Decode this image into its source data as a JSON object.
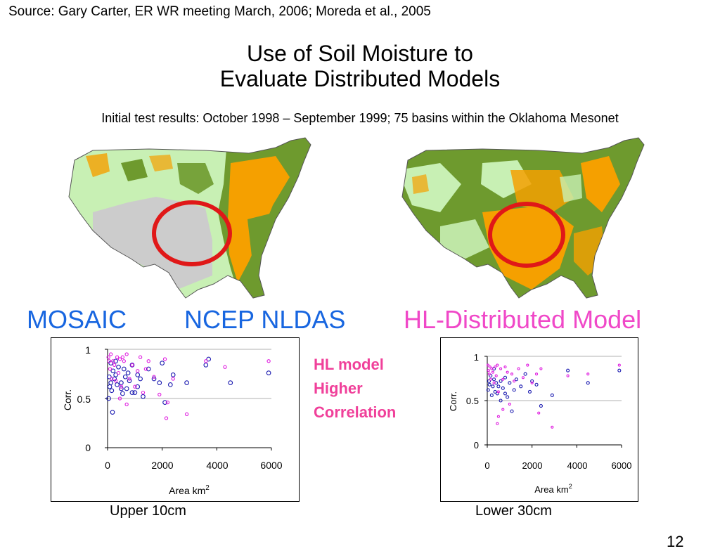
{
  "slide": {
    "source": "Source: Gary Carter, ER WR meeting March, 2006; Moreda et al., 2005",
    "title_line1": "Use of Soil Moisture to",
    "title_line2": "Evaluate Distributed Models",
    "subtitle": "Initial test results: October 1998 – September 1999; 75 basins within the Oklahoma Mesonet",
    "model_labels": [
      "MOSAIC",
      "NCEP NLDAS",
      "HL-Distributed Model"
    ],
    "callout": [
      "HL model",
      "Higher",
      "Correlation"
    ],
    "captions": [
      "Upper 10cm",
      "Lower 30cm"
    ],
    "page_number": "12"
  },
  "colors": {
    "blue_label": "#1866e0",
    "pink_label": "#f048c8",
    "callout": "#f0409a",
    "map_dry": "#f5a000",
    "map_moist": "#6e9a2e",
    "map_light": "#c8f0b4",
    "map_nodata": "#cccccc",
    "circle": "#e01818",
    "series_ncep": "#1a1ab0",
    "series_hl": "#e020e0"
  },
  "chart_data": [
    {
      "type": "scatter",
      "caption": "Upper 10cm",
      "xlabel": "Area km",
      "xlabel_sup": "2",
      "ylabel": "Corr.",
      "xlim": [
        0,
        6000
      ],
      "ylim": [
        0,
        1
      ],
      "xticks": [
        "0",
        "2000",
        "4000",
        "6000"
      ],
      "yticks": [
        "0",
        "0.5",
        "1"
      ],
      "grid": "horizontal",
      "series": [
        {
          "color": "#1a1ab0",
          "points": [
            [
              40,
              0.5
            ],
            [
              60,
              0.72
            ],
            [
              80,
              0.62
            ],
            [
              120,
              0.66
            ],
            [
              150,
              0.58
            ],
            [
              180,
              0.36
            ],
            [
              200,
              0.78
            ],
            [
              250,
              0.7
            ],
            [
              300,
              0.74
            ],
            [
              350,
              0.64
            ],
            [
              400,
              0.82
            ],
            [
              500,
              0.66
            ],
            [
              550,
              0.55
            ],
            [
              600,
              0.8
            ],
            [
              650,
              0.72
            ],
            [
              700,
              0.6
            ],
            [
              750,
              0.76
            ],
            [
              800,
              0.68
            ],
            [
              900,
              0.84
            ],
            [
              1000,
              0.56
            ],
            [
              1100,
              0.74
            ],
            [
              1200,
              0.7
            ],
            [
              1300,
              0.52
            ],
            [
              1500,
              0.8
            ],
            [
              1700,
              0.7
            ],
            [
              1900,
              0.66
            ],
            [
              2000,
              0.86
            ],
            [
              2100,
              0.46
            ],
            [
              2300,
              0.64
            ],
            [
              2400,
              0.74
            ],
            [
              2900,
              0.66
            ],
            [
              3600,
              0.84
            ],
            [
              3700,
              0.9
            ],
            [
              4500,
              0.66
            ],
            [
              5900,
              0.76
            ],
            [
              120,
              0.86
            ],
            [
              300,
              0.88
            ],
            [
              500,
              0.6
            ],
            [
              900,
              0.56
            ],
            [
              1100,
              0.62
            ]
          ]
        },
        {
          "color": "#e020e0",
          "points": [
            [
              30,
              0.92
            ],
            [
              60,
              0.88
            ],
            [
              90,
              0.8
            ],
            [
              120,
              0.95
            ],
            [
              150,
              0.7
            ],
            [
              200,
              0.88
            ],
            [
              250,
              0.84
            ],
            [
              300,
              0.68
            ],
            [
              350,
              0.92
            ],
            [
              400,
              0.76
            ],
            [
              450,
              0.9
            ],
            [
              500,
              0.62
            ],
            [
              600,
              0.88
            ],
            [
              700,
              0.95
            ],
            [
              800,
              0.7
            ],
            [
              900,
              0.84
            ],
            [
              1000,
              0.62
            ],
            [
              1100,
              0.78
            ],
            [
              1200,
              0.92
            ],
            [
              1300,
              0.56
            ],
            [
              1400,
              0.8
            ],
            [
              1500,
              0.88
            ],
            [
              1700,
              0.72
            ],
            [
              1900,
              0.54
            ],
            [
              2100,
              0.9
            ],
            [
              2200,
              0.46
            ],
            [
              2150,
              0.3
            ],
            [
              2400,
              0.7
            ],
            [
              2900,
              0.34
            ],
            [
              3600,
              0.88
            ],
            [
              4300,
              0.82
            ],
            [
              5900,
              0.88
            ],
            [
              700,
              0.44
            ],
            [
              450,
              0.5
            ],
            [
              550,
              0.92
            ]
          ]
        }
      ]
    },
    {
      "type": "scatter",
      "caption": "Lower 30cm",
      "xlabel": "Area km",
      "xlabel_sup": "2",
      "ylabel": "Corr.",
      "xlim": [
        0,
        6000
      ],
      "ylim": [
        0,
        1
      ],
      "xticks": [
        "0",
        "2000",
        "4000",
        "6000"
      ],
      "yticks": [
        "0",
        "0.5",
        "1"
      ],
      "grid": "horizontal",
      "series": [
        {
          "color": "#1a1ab0",
          "points": [
            [
              40,
              0.62
            ],
            [
              80,
              0.72
            ],
            [
              100,
              0.68
            ],
            [
              150,
              0.78
            ],
            [
              200,
              0.56
            ],
            [
              250,
              0.66
            ],
            [
              300,
              0.74
            ],
            [
              350,
              0.6
            ],
            [
              400,
              0.7
            ],
            [
              450,
              0.58
            ],
            [
              500,
              0.66
            ],
            [
              600,
              0.72
            ],
            [
              700,
              0.64
            ],
            [
              800,
              0.76
            ],
            [
              900,
              0.54
            ],
            [
              1000,
              0.7
            ],
            [
              1100,
              0.38
            ],
            [
              1200,
              0.62
            ],
            [
              1300,
              0.74
            ],
            [
              1500,
              0.66
            ],
            [
              1700,
              0.8
            ],
            [
              1900,
              0.6
            ],
            [
              2000,
              0.72
            ],
            [
              2200,
              0.68
            ],
            [
              2400,
              0.44
            ],
            [
              2900,
              0.56
            ],
            [
              3600,
              0.84
            ],
            [
              4500,
              0.7
            ],
            [
              5900,
              0.84
            ],
            [
              600,
              0.5
            ],
            [
              800,
              0.58
            ],
            [
              300,
              0.86
            ]
          ]
        },
        {
          "color": "#e020e0",
          "points": [
            [
              30,
              0.9
            ],
            [
              60,
              0.84
            ],
            [
              90,
              0.8
            ],
            [
              120,
              0.88
            ],
            [
              150,
              0.74
            ],
            [
              200,
              0.86
            ],
            [
              250,
              0.82
            ],
            [
              300,
              0.7
            ],
            [
              350,
              0.88
            ],
            [
              400,
              0.78
            ],
            [
              450,
              0.9
            ],
            [
              500,
              0.6
            ],
            [
              600,
              0.86
            ],
            [
              700,
              0.74
            ],
            [
              800,
              0.88
            ],
            [
              900,
              0.82
            ],
            [
              1000,
              0.46
            ],
            [
              1100,
              0.8
            ],
            [
              1200,
              0.72
            ],
            [
              1400,
              0.86
            ],
            [
              1600,
              0.76
            ],
            [
              1800,
              0.9
            ],
            [
              2000,
              0.7
            ],
            [
              2200,
              0.8
            ],
            [
              2400,
              0.86
            ],
            [
              2900,
              0.2
            ],
            [
              3600,
              0.78
            ],
            [
              4500,
              0.8
            ],
            [
              5900,
              0.9
            ],
            [
              500,
              0.32
            ],
            [
              450,
              0.24
            ],
            [
              700,
              0.4
            ],
            [
              2300,
              0.36
            ]
          ]
        }
      ]
    }
  ]
}
